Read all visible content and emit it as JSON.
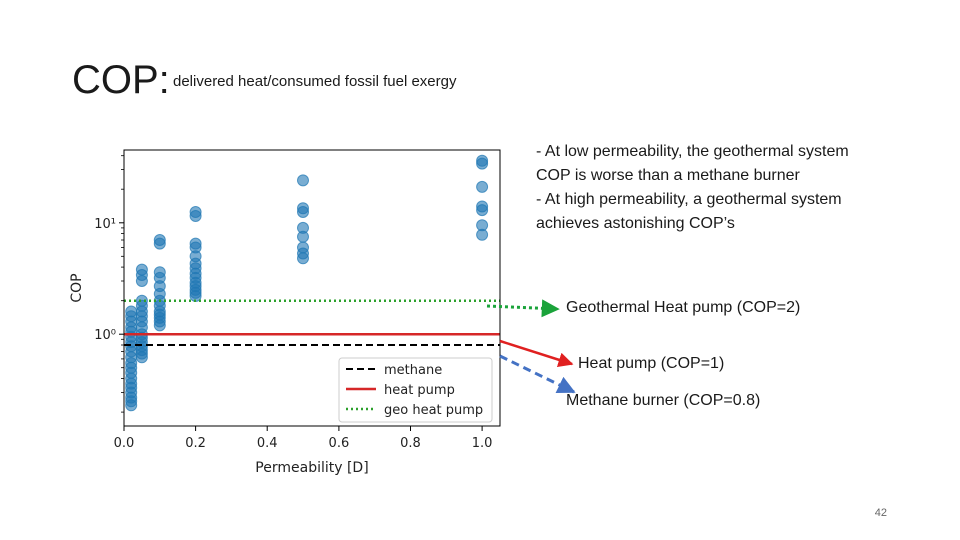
{
  "slide": {
    "title": "COP:",
    "subtitle": "delivered heat/consumed fossil fuel exergy",
    "notes": [
      "- At low permeability, the geothermal system COP is worse than a methane burner",
      "- At high permeability, a geothermal system achieves astonishing COP’s"
    ],
    "callouts": {
      "geo": "Geothermal Heat pump (COP=2)",
      "heat": "Heat pump (COP=1)",
      "methane": "Methane burner (COP=0.8)"
    },
    "page_number": "42"
  },
  "colors": {
    "points": "#1f77b4",
    "methane": "#000000",
    "heat_pump": "#d62728",
    "geo_heat_pump": "#2ca02c",
    "arrow_geo": "#1aa33a",
    "arrow_heat": "#e02020",
    "arrow_methane": "#4472c4"
  },
  "chart_data": {
    "type": "scatter",
    "xlabel": "Permeability [D]",
    "ylabel": "COP",
    "xlim": [
      0.0,
      1.05
    ],
    "ylim": [
      0.15,
      45
    ],
    "yscale": "log",
    "xticks": [
      0.0,
      0.2,
      0.4,
      0.6,
      0.8,
      1.0
    ],
    "xtick_labels": [
      "0.0",
      "0.2",
      "0.4",
      "0.6",
      "0.8",
      "1.0"
    ],
    "yticks": [
      1,
      10
    ],
    "ytick_labels": [
      "10⁰",
      "10¹"
    ],
    "grid": false,
    "legend_position": "lower-right",
    "series": [
      {
        "x": [
          0.02,
          0.02,
          0.02,
          0.02,
          0.02,
          0.02,
          0.02,
          0.02,
          0.02,
          0.02,
          0.02,
          0.02,
          0.02,
          0.02,
          0.02,
          0.02,
          0.02,
          0.02,
          0.02,
          0.02,
          0.05,
          0.05,
          0.05,
          0.05,
          0.05,
          0.05,
          0.05,
          0.05,
          0.05,
          0.05,
          0.05,
          0.05,
          0.05,
          0.05,
          0.05,
          0.05,
          0.1,
          0.1,
          0.1,
          0.1,
          0.1,
          0.1,
          0.1,
          0.1,
          0.1,
          0.1,
          0.1,
          0.1,
          0.1,
          0.2,
          0.2,
          0.2,
          0.2,
          0.2,
          0.2,
          0.2,
          0.2,
          0.2,
          0.2,
          0.2,
          0.2,
          0.2,
          0.2,
          0.5,
          0.5,
          0.5,
          0.5,
          0.5,
          0.5,
          0.5,
          0.5,
          1.0,
          1.0,
          1.0,
          1.0,
          1.0,
          1.0,
          1.0
        ],
        "y": [
          1.6,
          1.45,
          1.3,
          1.15,
          1.05,
          0.95,
          0.85,
          0.78,
          0.7,
          0.62,
          0.55,
          0.5,
          0.45,
          0.4,
          0.36,
          0.33,
          0.3,
          0.27,
          0.25,
          0.23,
          3.8,
          3.4,
          3.0,
          2.0,
          1.8,
          1.6,
          1.45,
          1.3,
          1.15,
          1.0,
          0.93,
          0.85,
          0.78,
          0.72,
          0.67,
          0.62,
          7.0,
          6.5,
          3.6,
          3.2,
          2.7,
          2.3,
          2.0,
          1.8,
          1.6,
          1.5,
          1.4,
          1.3,
          1.2,
          12.5,
          11.5,
          6.5,
          6.0,
          5.0,
          4.3,
          3.9,
          3.5,
          3.2,
          2.9,
          2.7,
          2.5,
          2.35,
          2.2,
          24,
          13.5,
          12.5,
          9.0,
          7.5,
          6.0,
          5.3,
          4.8,
          36,
          34,
          21,
          14,
          13,
          9.5,
          7.8
        ]
      }
    ],
    "lines": [
      {
        "name": "methane",
        "y": 0.8,
        "style": "dashed"
      },
      {
        "name": "heat pump",
        "y": 1.0,
        "style": "solid"
      },
      {
        "name": "geo heat pump",
        "y": 2.0,
        "style": "dotted"
      }
    ]
  }
}
